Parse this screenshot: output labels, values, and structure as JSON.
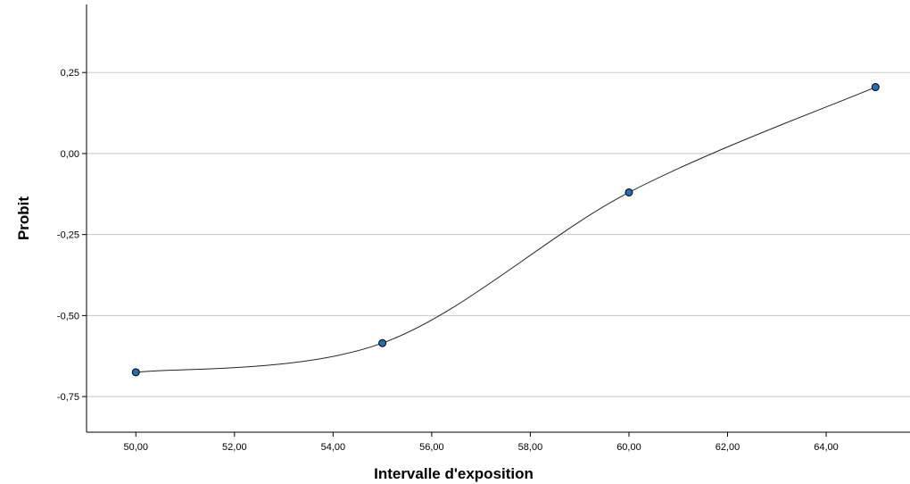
{
  "chart_data": {
    "type": "line",
    "xlabel": "Intervalle d'exposition",
    "ylabel": "Probit",
    "x": [
      50,
      55,
      60,
      65
    ],
    "series": [
      {
        "values": [
          -0.675,
          -0.585,
          -0.12,
          0.205
        ]
      }
    ],
    "xlim": [
      49,
      65.7
    ],
    "ylim": [
      -0.86,
      0.46
    ],
    "xticks": [
      50,
      52,
      54,
      56,
      58,
      60,
      62,
      64
    ],
    "xtick_labels": [
      "50,00",
      "52,00",
      "54,00",
      "56,00",
      "58,00",
      "60,00",
      "62,00",
      "64,00"
    ],
    "yticks": [
      0.25,
      0,
      -0.25,
      -0.5,
      -0.75
    ],
    "ytick_labels": [
      "0,25",
      "0,00",
      "-0,25",
      "-0,50",
      "-0,75"
    ],
    "grid": "horizontal",
    "smooth_curve": true,
    "colors": {
      "marker": "#1f6fb2",
      "line": "#222222",
      "grid": "#c8c8c8"
    }
  }
}
